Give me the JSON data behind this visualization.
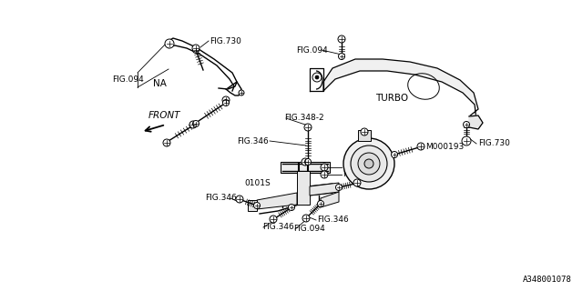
{
  "bg_color": "#ffffff",
  "line_color": "#000000",
  "text_color": "#000000",
  "part_number": "A348001078",
  "font_size": 6.5,
  "labels": {
    "FIG094_tl": "FIG.094",
    "FIG730_tl": "FIG.730",
    "NA": "NA",
    "FIG094_tr": "FIG.094",
    "TURBO": "TURBO",
    "FIG730_br": "FIG.730",
    "FIG348_2": "FIG.348-2",
    "M000193": "M000193",
    "FRONT": "FRONT",
    "0101S": "0101S",
    "FIG346": "FIG.346",
    "FIG094_bot": "FIG.094"
  }
}
